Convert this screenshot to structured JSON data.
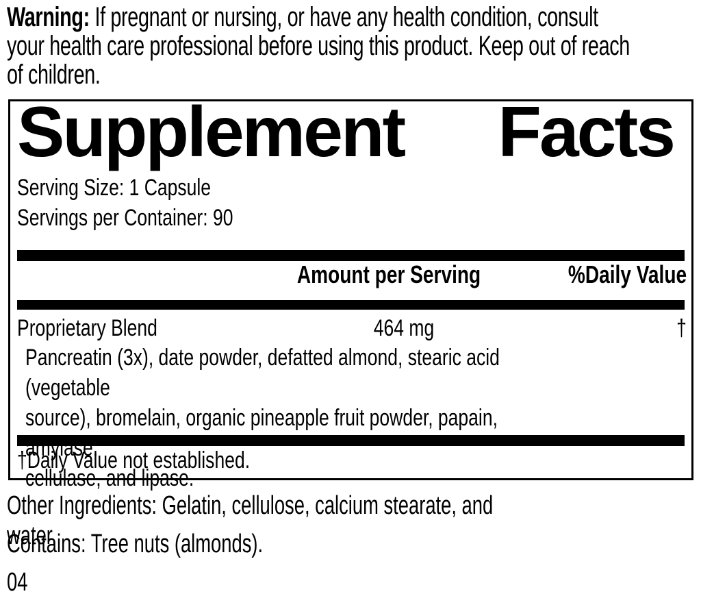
{
  "warning": {
    "label": "Warning:",
    "text": " If pregnant or nursing, or have any health condition, consult\nyour health care professional before using this product. Keep out of reach\nof children."
  },
  "supplement_facts": {
    "title_word1": "Supplement",
    "title_word2": "Facts",
    "serving_size": "Serving Size: 1 Capsule",
    "servings_per_container": "Servings per Container: 90",
    "header": {
      "amount": "Amount per Serving",
      "daily_value": "%Daily Value"
    },
    "rows": [
      {
        "name": "Proprietary Blend",
        "amount": "464 mg",
        "daily_value": "†",
        "description": "Pancreatin (3x), date powder, defatted almond, stearic acid (vegetable\nsource), bromelain, organic pineapple fruit powder, papain, amylase,\ncellulase, and lipase."
      }
    ],
    "footnote": "†Daily Value not established."
  },
  "other_ingredients": "Other Ingredients: Gelatin, cellulose, calcium stearate, and water.",
  "contains": "Contains: Tree nuts (almonds).",
  "code": "04",
  "colors": {
    "ink": "#000000",
    "background": "#ffffff"
  }
}
